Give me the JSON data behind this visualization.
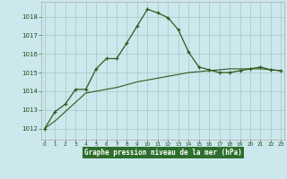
{
  "title": "Graphe pression niveau de la mer (hPa)",
  "bg_color": "#cce8ec",
  "grid_color": "#aacccc",
  "line_color": "#2d5a1b",
  "label_bg": "#2d6e2d",
  "label_fg": "#ffffff",
  "x_ticks": [
    0,
    1,
    2,
    3,
    4,
    5,
    6,
    7,
    8,
    9,
    10,
    11,
    12,
    13,
    14,
    15,
    16,
    17,
    18,
    19,
    20,
    21,
    22,
    23
  ],
  "y_ticks": [
    1012,
    1013,
    1014,
    1015,
    1016,
    1017,
    1018
  ],
  "ylim": [
    1011.4,
    1018.8
  ],
  "xlim": [
    -0.3,
    23.3
  ],
  "series1_x": [
    0,
    1,
    2,
    3,
    4,
    5,
    6,
    7,
    8,
    9,
    10,
    11,
    12,
    13,
    14,
    15,
    16,
    17,
    18,
    19,
    20,
    21,
    22,
    23
  ],
  "series1_y": [
    1012.0,
    1012.9,
    1013.3,
    1014.1,
    1014.1,
    1015.2,
    1015.75,
    1015.75,
    1016.6,
    1017.5,
    1018.4,
    1018.2,
    1017.95,
    1017.3,
    1016.1,
    1015.3,
    1015.15,
    1015.0,
    1015.0,
    1015.1,
    1015.2,
    1015.3,
    1015.15,
    1015.1
  ],
  "series2_x": [
    0,
    1,
    2,
    3,
    4,
    5,
    6,
    7,
    8,
    9,
    10,
    11,
    12,
    13,
    14,
    15,
    16,
    17,
    18,
    19,
    20,
    21,
    22,
    23
  ],
  "series2_y": [
    1012.0,
    1012.4,
    1012.9,
    1013.4,
    1013.9,
    1014.0,
    1014.1,
    1014.2,
    1014.35,
    1014.5,
    1014.6,
    1014.7,
    1014.8,
    1014.9,
    1015.0,
    1015.05,
    1015.1,
    1015.15,
    1015.2,
    1015.2,
    1015.2,
    1015.2,
    1015.15,
    1015.1
  ]
}
